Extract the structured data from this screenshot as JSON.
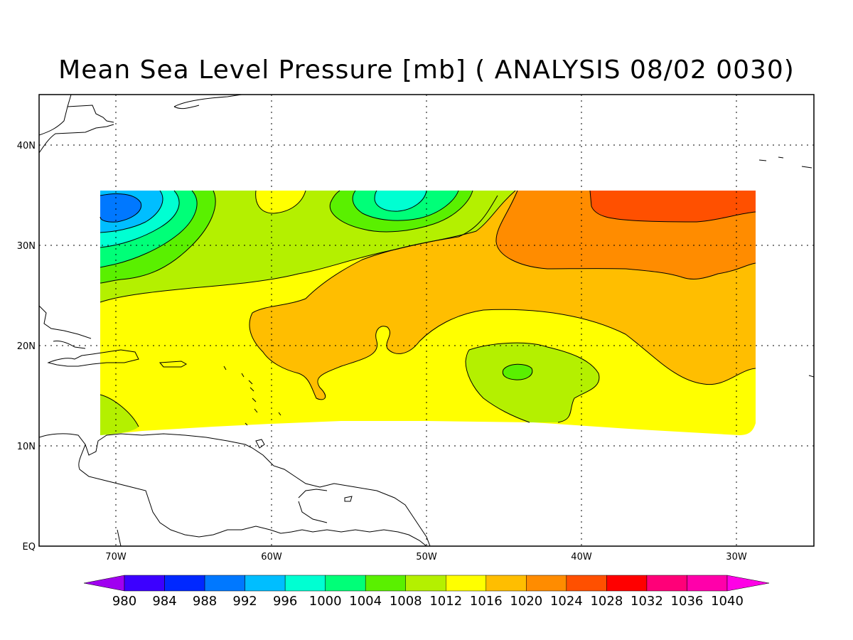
{
  "title": "Mean Sea Level Pressure [mb] ( ANALYSIS 08/02 0030)",
  "axes": {
    "lon_ticks": [
      "70W",
      "60W",
      "50W",
      "40W",
      "30W"
    ],
    "lat_ticks": [
      "40N",
      "30N",
      "20N",
      "10N",
      "EQ"
    ],
    "lon_range": [
      -75,
      -25
    ],
    "lat_range": [
      0,
      45
    ],
    "grid": true
  },
  "colorbar": {
    "levels": [
      "980",
      "984",
      "988",
      "992",
      "996",
      "1000",
      "1004",
      "1008",
      "1012",
      "1016",
      "1020",
      "1024",
      "1028",
      "1032",
      "1036",
      "1040"
    ],
    "colors": [
      "#a000f0",
      "#3c00ff",
      "#0028ff",
      "#0078ff",
      "#00beff",
      "#00ffd2",
      "#00ff78",
      "#5af000",
      "#b4f000",
      "#ffff00",
      "#ffbe00",
      "#ff8c00",
      "#ff5000",
      "#ff0000",
      "#ff0078",
      "#ff00aa",
      "#ff00e6"
    ]
  },
  "colors": {
    "p1000": "#00ffd2",
    "p996": "#00beff",
    "p992": "#0078ff",
    "p1004": "#00ff78",
    "p1008": "#5af000",
    "p1012": "#b4f000",
    "p1016": "#ffff00",
    "p1020": "#ffbe00",
    "p1024": "#ff8c00",
    "p1028": "#ff5000"
  }
}
